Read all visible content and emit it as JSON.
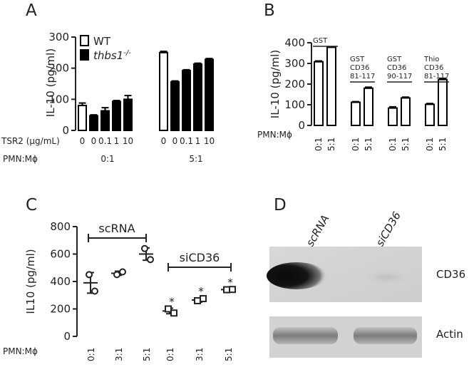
{
  "panels": {
    "a": {
      "letter": "A"
    },
    "b": {
      "letter": "B"
    },
    "c": {
      "letter": "C"
    },
    "d": {
      "letter": "D"
    }
  },
  "chart_data": [
    {
      "panel": "A",
      "type": "bar",
      "ylabel": "IL-10 (pg/ml)",
      "ylim": [
        0,
        300
      ],
      "yticks": [
        0,
        100,
        200,
        300
      ],
      "legend": [
        {
          "name": "WT",
          "fill": "#ffffff"
        },
        {
          "name": "thbs1",
          "sup": "-/-",
          "fill": "#000000"
        }
      ],
      "legend_position": "top-left",
      "row_labels": {
        "tsr2": "TSR2 (μg/mL)",
        "ratio": "PMN:Mϕ"
      },
      "groups": [
        {
          "ratio": "0:1",
          "bars": [
            {
              "series": "WT",
              "tsr2": "0",
              "value": 80,
              "error": 8
            },
            {
              "series": "thbs1",
              "tsr2": "0",
              "value": 47,
              "error": 3
            },
            {
              "series": "thbs1",
              "tsr2": "0.1",
              "value": 63,
              "error": 10
            },
            {
              "series": "thbs1",
              "tsr2": "1",
              "value": 93,
              "error": 3
            },
            {
              "series": "thbs1",
              "tsr2": "10",
              "value": 100,
              "error": 12
            }
          ]
        },
        {
          "ratio": "5:1",
          "bars": [
            {
              "series": "WT",
              "tsr2": "0",
              "value": 250,
              "error": 4
            },
            {
              "series": "thbs1",
              "tsr2": "0",
              "value": 156,
              "error": 3
            },
            {
              "series": "thbs1",
              "tsr2": "0.1",
              "value": 192,
              "error": 3
            },
            {
              "series": "thbs1",
              "tsr2": "1",
              "value": 213,
              "error": 3
            },
            {
              "series": "thbs1",
              "tsr2": "10",
              "value": 228,
              "error": 3
            }
          ]
        }
      ]
    },
    {
      "panel": "B",
      "type": "bar",
      "ylabel": "IL-10 (pg/ml)",
      "ylim": [
        0,
        400
      ],
      "yticks": [
        0,
        100,
        200,
        300,
        400
      ],
      "row_labels": {
        "ratio": "PMN:Mϕ"
      },
      "groups": [
        {
          "label": [
            "GST"
          ],
          "bars": [
            {
              "x": "0:1",
              "value": 308,
              "error": 4
            },
            {
              "x": "5:1",
              "value": 378,
              "error": 3
            }
          ]
        },
        {
          "label": [
            "GST",
            "CD36",
            "81-117"
          ],
          "bars": [
            {
              "x": "0:1",
              "value": 112,
              "error": 3
            },
            {
              "x": "5:1",
              "value": 180,
              "error": 5
            }
          ]
        },
        {
          "label": [
            "GST",
            "CD36",
            "90-117"
          ],
          "bars": [
            {
              "x": "0:1",
              "value": 84,
              "error": 6
            },
            {
              "x": "5:1",
              "value": 133,
              "error": 4
            }
          ]
        },
        {
          "label": [
            "Thio",
            "CD36",
            "81-117"
          ],
          "bars": [
            {
              "x": "0:1",
              "value": 102,
              "error": 4
            },
            {
              "x": "5:1",
              "value": 222,
              "error": 6
            }
          ]
        }
      ]
    },
    {
      "panel": "C",
      "type": "scatter",
      "ylabel": "IL10 (pg/ml)",
      "ylim": [
        0,
        800
      ],
      "yticks": [
        0,
        200,
        400,
        600,
        800
      ],
      "row_labels": {
        "ratio": "PMN:Mϕ"
      },
      "categories": [
        "0:1",
        "3:1",
        "5:1",
        "0:1",
        "3:1",
        "5:1"
      ],
      "groups": [
        {
          "name": "scRNA",
          "marker": "circle",
          "points": [
            {
              "x": "0:1",
              "values": [
                450,
                330
              ],
              "mean": 390,
              "error": 75
            },
            {
              "x": "3:1",
              "values": [
                450,
                470
              ],
              "mean": 460,
              "error": 15
            },
            {
              "x": "5:1",
              "values": [
                640,
                560
              ],
              "mean": 600,
              "error": 45
            }
          ]
        },
        {
          "name": "siCD36",
          "marker": "square",
          "points": [
            {
              "x": "0:1",
              "values": [
                200,
                170
              ],
              "mean": 185,
              "error": 20,
              "sig": "*"
            },
            {
              "x": "3:1",
              "values": [
                260,
                275
              ],
              "mean": 265,
              "error": 15,
              "sig": "*"
            },
            {
              "x": "5:1",
              "values": [
                340,
                342
              ],
              "mean": 341,
              "error": 4,
              "sig": "*"
            }
          ]
        }
      ]
    }
  ],
  "blot": {
    "lanes": [
      "scRNA",
      "siCD36"
    ],
    "bands": [
      "CD36",
      "Actin"
    ]
  }
}
